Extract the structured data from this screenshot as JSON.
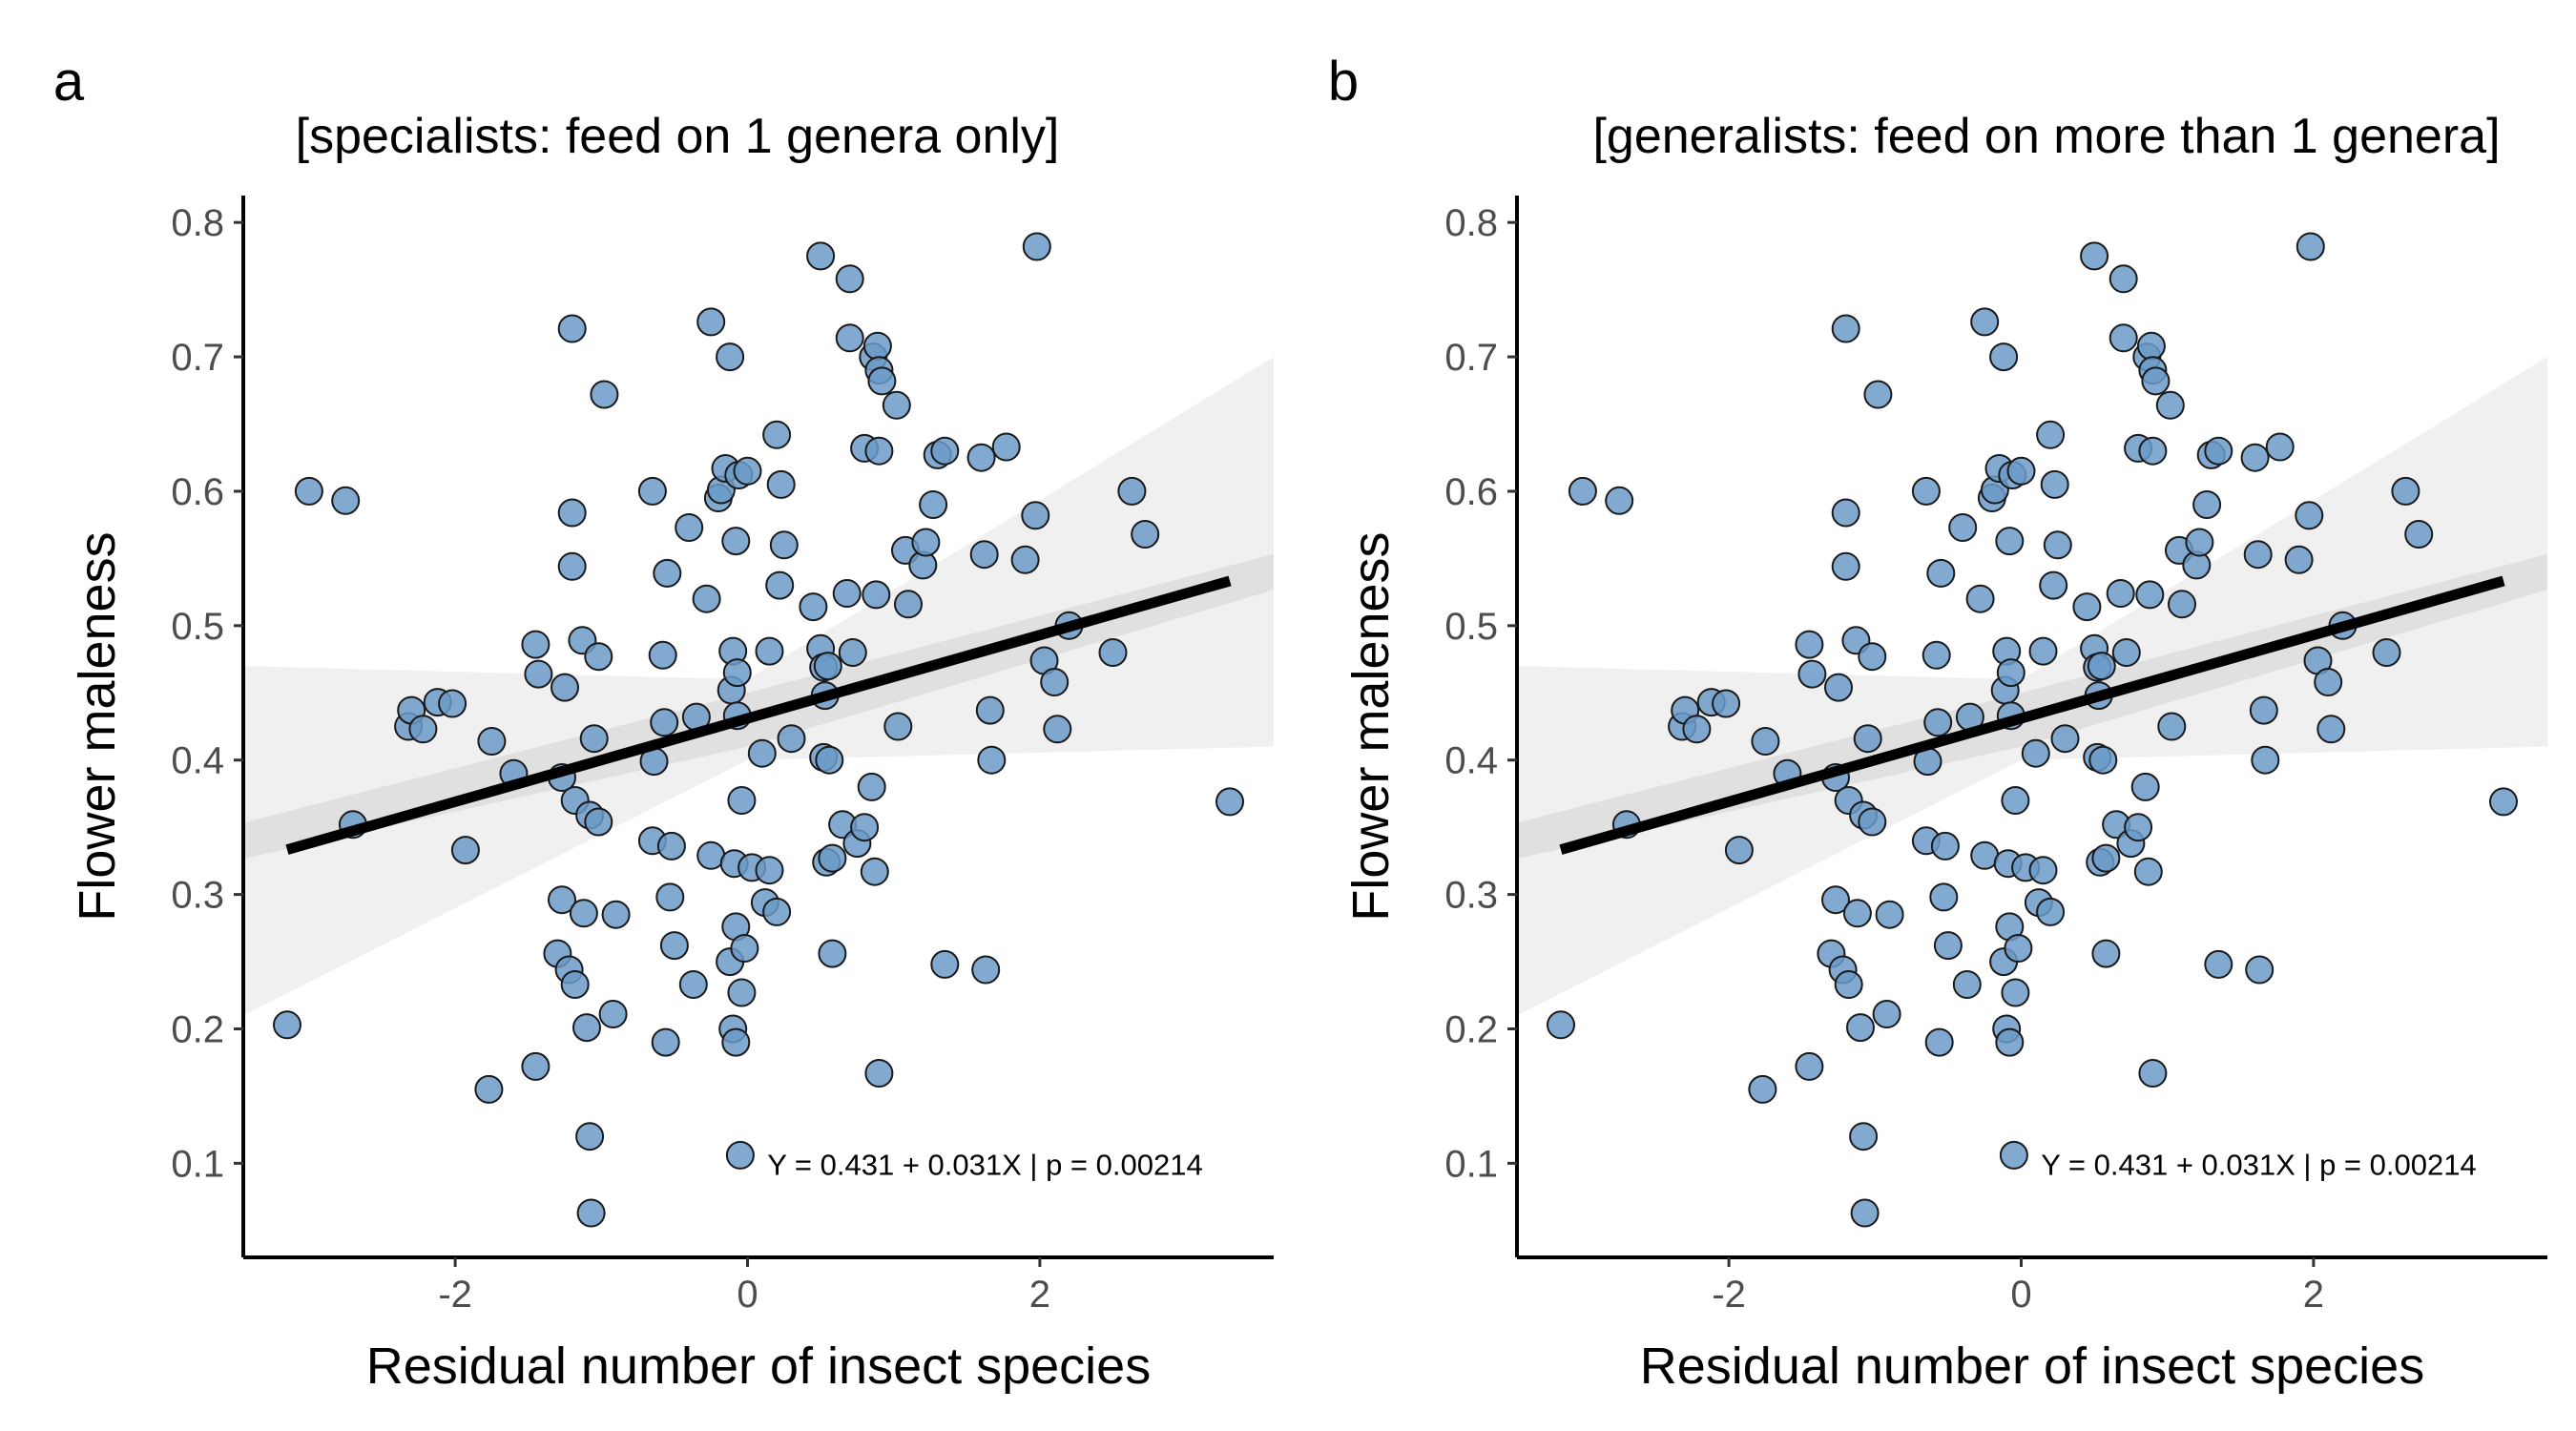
{
  "chart_data": [
    {
      "type": "scatter",
      "panel_label": "a",
      "title": "[specialists: feed on 1 genera only]",
      "xlabel": "Residual number of insect species",
      "ylabel": "Flower maleness",
      "xlim": [
        -3.45,
        3.6
      ],
      "ylim": [
        0.03,
        0.82
      ],
      "x_ticks": [
        -2,
        0,
        2
      ],
      "x_tick_labels": [
        "-2",
        "0",
        "2"
      ],
      "y_ticks": [
        0.1,
        0.2,
        0.3,
        0.4,
        0.5,
        0.6,
        0.7,
        0.8
      ],
      "y_tick_labels": [
        "0.1",
        "0.2",
        "0.3",
        "0.4",
        "0.5",
        "0.6",
        "0.7",
        "0.8"
      ],
      "grid": false,
      "annotation": "Y = 0.431 + 0.031X | p = 0.00214",
      "fit": {
        "intercept": 0.431,
        "slope": 0.031,
        "x_range": [
          -3.15,
          3.3
        ]
      },
      "uncertainty_band": {
        "left": {
          "x": -3.45,
          "lower": 0.21,
          "upper": 0.47
        },
        "mid": {
          "x": 0,
          "lower": 0.4,
          "upper": 0.46
        },
        "right": {
          "x": 3.6,
          "lower": 0.41,
          "upper": 0.7
        }
      },
      "points": [
        [
          -3.15,
          0.203
        ],
        [
          -3.0,
          0.6
        ],
        [
          -2.75,
          0.593
        ],
        [
          -2.7,
          0.352
        ],
        [
          -2.32,
          0.425
        ],
        [
          -2.3,
          0.437
        ],
        [
          -2.22,
          0.423
        ],
        [
          -2.12,
          0.443
        ],
        [
          -2.02,
          0.442
        ],
        [
          -1.93,
          0.333
        ],
        [
          -1.77,
          0.155
        ],
        [
          -1.75,
          0.414
        ],
        [
          -1.6,
          0.39
        ],
        [
          -1.45,
          0.172
        ],
        [
          -1.45,
          0.486
        ],
        [
          -1.43,
          0.464
        ],
        [
          -1.3,
          0.256
        ],
        [
          -1.27,
          0.387
        ],
        [
          -1.27,
          0.296
        ],
        [
          -1.25,
          0.454
        ],
        [
          -1.22,
          0.244
        ],
        [
          -1.2,
          0.721
        ],
        [
          -1.2,
          0.584
        ],
        [
          -1.2,
          0.544
        ],
        [
          -1.18,
          0.233
        ],
        [
          -1.18,
          0.37
        ],
        [
          -1.13,
          0.489
        ],
        [
          -1.12,
          0.286
        ],
        [
          -1.1,
          0.201
        ],
        [
          -1.08,
          0.12
        ],
        [
          -1.08,
          0.359
        ],
        [
          -1.07,
          0.063
        ],
        [
          -1.05,
          0.416
        ],
        [
          -1.02,
          0.477
        ],
        [
          -1.02,
          0.354
        ],
        [
          -0.98,
          0.672
        ],
        [
          -0.92,
          0.211
        ],
        [
          -0.9,
          0.285
        ],
        [
          -0.65,
          0.6
        ],
        [
          -0.65,
          0.34
        ],
        [
          -0.64,
          0.399
        ],
        [
          -0.58,
          0.478
        ],
        [
          -0.57,
          0.428
        ],
        [
          -0.56,
          0.19
        ],
        [
          -0.55,
          0.539
        ],
        [
          -0.53,
          0.298
        ],
        [
          -0.52,
          0.336
        ],
        [
          -0.5,
          0.262
        ],
        [
          -0.4,
          0.573
        ],
        [
          -0.37,
          0.233
        ],
        [
          -0.35,
          0.432
        ],
        [
          -0.28,
          0.52
        ],
        [
          -0.25,
          0.329
        ],
        [
          -0.25,
          0.726
        ],
        [
          -0.2,
          0.595
        ],
        [
          -0.18,
          0.601
        ],
        [
          -0.15,
          0.617
        ],
        [
          -0.12,
          0.25
        ],
        [
          -0.12,
          0.7
        ],
        [
          -0.11,
          0.452
        ],
        [
          -0.1,
          0.481
        ],
        [
          -0.1,
          0.2
        ],
        [
          -0.09,
          0.323
        ],
        [
          -0.08,
          0.563
        ],
        [
          -0.08,
          0.276
        ],
        [
          -0.08,
          0.19
        ],
        [
          -0.07,
          0.433
        ],
        [
          -0.07,
          0.465
        ],
        [
          -0.06,
          0.612
        ],
        [
          -0.05,
          0.106
        ],
        [
          -0.04,
          0.227
        ],
        [
          -0.04,
          0.37
        ],
        [
          -0.02,
          0.26
        ],
        [
          0.0,
          0.615
        ],
        [
          0.03,
          0.32
        ],
        [
          0.1,
          0.405
        ],
        [
          0.12,
          0.294
        ],
        [
          0.15,
          0.481
        ],
        [
          0.15,
          0.318
        ],
        [
          0.2,
          0.642
        ],
        [
          0.2,
          0.287
        ],
        [
          0.22,
          0.53
        ],
        [
          0.23,
          0.605
        ],
        [
          0.25,
          0.56
        ],
        [
          0.3,
          0.416
        ],
        [
          0.45,
          0.514
        ],
        [
          0.5,
          0.775
        ],
        [
          0.5,
          0.483
        ],
        [
          0.52,
          0.469
        ],
        [
          0.52,
          0.402
        ],
        [
          0.53,
          0.448
        ],
        [
          0.54,
          0.324
        ],
        [
          0.55,
          0.47
        ],
        [
          0.56,
          0.4
        ],
        [
          0.58,
          0.256
        ],
        [
          0.58,
          0.327
        ],
        [
          0.65,
          0.352
        ],
        [
          0.68,
          0.524
        ],
        [
          0.7,
          0.758
        ],
        [
          0.7,
          0.714
        ],
        [
          0.72,
          0.48
        ],
        [
          0.75,
          0.338
        ],
        [
          0.8,
          0.35
        ],
        [
          0.8,
          0.632
        ],
        [
          0.85,
          0.38
        ],
        [
          0.86,
          0.7
        ],
        [
          0.87,
          0.317
        ],
        [
          0.88,
          0.523
        ],
        [
          0.89,
          0.708
        ],
        [
          0.9,
          0.69
        ],
        [
          0.9,
          0.63
        ],
        [
          0.9,
          0.167
        ],
        [
          0.92,
          0.682
        ],
        [
          1.02,
          0.664
        ],
        [
          1.03,
          0.425
        ],
        [
          1.08,
          0.556
        ],
        [
          1.1,
          0.516
        ],
        [
          1.2,
          0.545
        ],
        [
          1.22,
          0.562
        ],
        [
          1.27,
          0.59
        ],
        [
          1.3,
          0.627
        ],
        [
          1.35,
          0.63
        ],
        [
          1.35,
          0.248
        ],
        [
          1.6,
          0.625
        ],
        [
          1.62,
          0.553
        ],
        [
          1.63,
          0.244
        ],
        [
          1.66,
          0.437
        ],
        [
          1.67,
          0.4
        ],
        [
          1.77,
          0.633
        ],
        [
          1.9,
          0.549
        ],
        [
          1.97,
          0.582
        ],
        [
          1.98,
          0.782
        ],
        [
          2.03,
          0.474
        ],
        [
          2.1,
          0.458
        ],
        [
          2.12,
          0.423
        ],
        [
          2.2,
          0.5
        ],
        [
          2.5,
          0.48
        ],
        [
          2.63,
          0.6
        ],
        [
          2.72,
          0.568
        ],
        [
          3.3,
          0.369
        ]
      ]
    },
    {
      "type": "scatter",
      "panel_label": "b",
      "title": "[generalists: feed on more than 1 genera]",
      "xlabel": "Residual number of insect species",
      "ylabel": "Flower maleness",
      "xlim": [
        -3.45,
        3.6
      ],
      "ylim": [
        0.03,
        0.82
      ],
      "x_ticks": [
        -2,
        0,
        2
      ],
      "x_tick_labels": [
        "-2",
        "0",
        "2"
      ],
      "y_ticks": [
        0.1,
        0.2,
        0.3,
        0.4,
        0.5,
        0.6,
        0.7,
        0.8
      ],
      "y_tick_labels": [
        "0.1",
        "0.2",
        "0.3",
        "0.4",
        "0.5",
        "0.6",
        "0.7",
        "0.8"
      ],
      "grid": false,
      "annotation": "Y = 0.431 + 0.031X | p = 0.00214",
      "fit": {
        "intercept": 0.431,
        "slope": 0.031,
        "x_range": [
          -3.15,
          3.3
        ]
      },
      "uncertainty_band": {
        "left": {
          "x": -3.45,
          "lower": 0.21,
          "upper": 0.47
        },
        "mid": {
          "x": 0,
          "lower": 0.4,
          "upper": 0.46
        },
        "right": {
          "x": 3.6,
          "lower": 0.41,
          "upper": 0.7
        }
      },
      "points": [
        [
          -3.15,
          0.203
        ],
        [
          -3.0,
          0.6
        ],
        [
          -2.75,
          0.593
        ],
        [
          -2.7,
          0.352
        ],
        [
          -2.32,
          0.425
        ],
        [
          -2.3,
          0.437
        ],
        [
          -2.22,
          0.423
        ],
        [
          -2.12,
          0.443
        ],
        [
          -2.02,
          0.442
        ],
        [
          -1.93,
          0.333
        ],
        [
          -1.77,
          0.155
        ],
        [
          -1.75,
          0.414
        ],
        [
          -1.6,
          0.39
        ],
        [
          -1.45,
          0.172
        ],
        [
          -1.45,
          0.486
        ],
        [
          -1.43,
          0.464
        ],
        [
          -1.3,
          0.256
        ],
        [
          -1.27,
          0.387
        ],
        [
          -1.27,
          0.296
        ],
        [
          -1.25,
          0.454
        ],
        [
          -1.22,
          0.244
        ],
        [
          -1.2,
          0.721
        ],
        [
          -1.2,
          0.584
        ],
        [
          -1.2,
          0.544
        ],
        [
          -1.18,
          0.233
        ],
        [
          -1.18,
          0.37
        ],
        [
          -1.13,
          0.489
        ],
        [
          -1.12,
          0.286
        ],
        [
          -1.1,
          0.201
        ],
        [
          -1.08,
          0.12
        ],
        [
          -1.08,
          0.359
        ],
        [
          -1.07,
          0.063
        ],
        [
          -1.05,
          0.416
        ],
        [
          -1.02,
          0.477
        ],
        [
          -1.02,
          0.354
        ],
        [
          -0.98,
          0.672
        ],
        [
          -0.92,
          0.211
        ],
        [
          -0.9,
          0.285
        ],
        [
          -0.65,
          0.6
        ],
        [
          -0.65,
          0.34
        ],
        [
          -0.64,
          0.399
        ],
        [
          -0.58,
          0.478
        ],
        [
          -0.57,
          0.428
        ],
        [
          -0.56,
          0.19
        ],
        [
          -0.55,
          0.539
        ],
        [
          -0.53,
          0.298
        ],
        [
          -0.52,
          0.336
        ],
        [
          -0.5,
          0.262
        ],
        [
          -0.4,
          0.573
        ],
        [
          -0.37,
          0.233
        ],
        [
          -0.35,
          0.432
        ],
        [
          -0.28,
          0.52
        ],
        [
          -0.25,
          0.329
        ],
        [
          -0.25,
          0.726
        ],
        [
          -0.2,
          0.595
        ],
        [
          -0.18,
          0.601
        ],
        [
          -0.15,
          0.617
        ],
        [
          -0.12,
          0.25
        ],
        [
          -0.12,
          0.7
        ],
        [
          -0.11,
          0.452
        ],
        [
          -0.1,
          0.481
        ],
        [
          -0.1,
          0.2
        ],
        [
          -0.09,
          0.323
        ],
        [
          -0.08,
          0.563
        ],
        [
          -0.08,
          0.276
        ],
        [
          -0.08,
          0.19
        ],
        [
          -0.07,
          0.433
        ],
        [
          -0.07,
          0.465
        ],
        [
          -0.06,
          0.612
        ],
        [
          -0.05,
          0.106
        ],
        [
          -0.04,
          0.227
        ],
        [
          -0.04,
          0.37
        ],
        [
          -0.02,
          0.26
        ],
        [
          0.0,
          0.615
        ],
        [
          0.03,
          0.32
        ],
        [
          0.1,
          0.405
        ],
        [
          0.12,
          0.294
        ],
        [
          0.15,
          0.481
        ],
        [
          0.15,
          0.318
        ],
        [
          0.2,
          0.642
        ],
        [
          0.2,
          0.287
        ],
        [
          0.22,
          0.53
        ],
        [
          0.23,
          0.605
        ],
        [
          0.25,
          0.56
        ],
        [
          0.3,
          0.416
        ],
        [
          0.45,
          0.514
        ],
        [
          0.5,
          0.775
        ],
        [
          0.5,
          0.483
        ],
        [
          0.52,
          0.469
        ],
        [
          0.52,
          0.402
        ],
        [
          0.53,
          0.448
        ],
        [
          0.54,
          0.324
        ],
        [
          0.55,
          0.47
        ],
        [
          0.56,
          0.4
        ],
        [
          0.58,
          0.256
        ],
        [
          0.58,
          0.327
        ],
        [
          0.65,
          0.352
        ],
        [
          0.68,
          0.524
        ],
        [
          0.7,
          0.758
        ],
        [
          0.7,
          0.714
        ],
        [
          0.72,
          0.48
        ],
        [
          0.75,
          0.338
        ],
        [
          0.8,
          0.35
        ],
        [
          0.8,
          0.632
        ],
        [
          0.85,
          0.38
        ],
        [
          0.86,
          0.7
        ],
        [
          0.87,
          0.317
        ],
        [
          0.88,
          0.523
        ],
        [
          0.89,
          0.708
        ],
        [
          0.9,
          0.69
        ],
        [
          0.9,
          0.63
        ],
        [
          0.9,
          0.167
        ],
        [
          0.92,
          0.682
        ],
        [
          1.02,
          0.664
        ],
        [
          1.03,
          0.425
        ],
        [
          1.08,
          0.556
        ],
        [
          1.1,
          0.516
        ],
        [
          1.2,
          0.545
        ],
        [
          1.22,
          0.562
        ],
        [
          1.27,
          0.59
        ],
        [
          1.3,
          0.627
        ],
        [
          1.35,
          0.63
        ],
        [
          1.35,
          0.248
        ],
        [
          1.6,
          0.625
        ],
        [
          1.62,
          0.553
        ],
        [
          1.63,
          0.244
        ],
        [
          1.66,
          0.437
        ],
        [
          1.67,
          0.4
        ],
        [
          1.77,
          0.633
        ],
        [
          1.9,
          0.549
        ],
        [
          1.97,
          0.582
        ],
        [
          1.98,
          0.782
        ],
        [
          2.03,
          0.474
        ],
        [
          2.1,
          0.458
        ],
        [
          2.12,
          0.423
        ],
        [
          2.2,
          0.5
        ],
        [
          2.5,
          0.48
        ],
        [
          2.63,
          0.6
        ],
        [
          2.72,
          0.568
        ],
        [
          3.3,
          0.369
        ]
      ]
    }
  ],
  "colors": {
    "point_fill": "#6c9bc9",
    "point_stroke": "#1a1a1a",
    "fit_line": "#000000",
    "band": "#d3d3d3",
    "tick_label": "#4d4d4d"
  }
}
